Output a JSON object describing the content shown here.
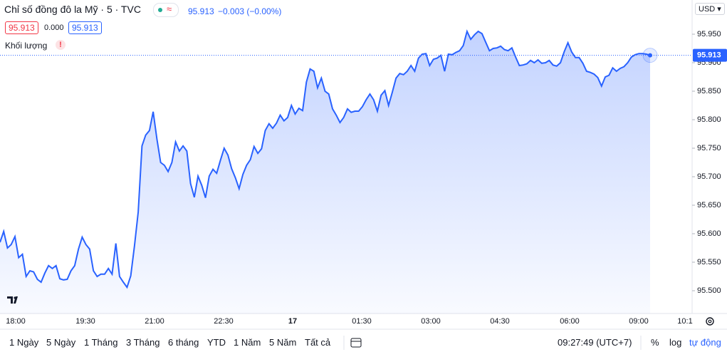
{
  "header": {
    "title": "Chỉ số đồng đô la Mỹ · 5 · TVC",
    "last": "95.913",
    "change": "−0.003 (−0.00%)",
    "bid": "95.913",
    "spread": "0.000",
    "ask": "95.913",
    "volume": "Khối lượng",
    "currency": "USD"
  },
  "chart_data": {
    "type": "area",
    "color": "#2962ff",
    "values": [
      95.585,
      95.604,
      95.575,
      95.581,
      95.595,
      95.558,
      95.564,
      95.525,
      95.535,
      95.533,
      95.52,
      95.515,
      95.531,
      95.544,
      95.539,
      95.544,
      95.521,
      95.519,
      95.52,
      95.535,
      95.544,
      95.573,
      95.594,
      95.581,
      95.573,
      95.535,
      95.525,
      95.529,
      95.529,
      95.539,
      95.529,
      95.583,
      95.525,
      95.515,
      95.506,
      95.526,
      95.579,
      95.638,
      95.754,
      95.773,
      95.781,
      95.814,
      95.766,
      95.725,
      95.72,
      95.709,
      95.725,
      95.761,
      95.745,
      95.754,
      95.745,
      95.688,
      95.664,
      95.701,
      95.685,
      95.663,
      95.701,
      95.713,
      95.706,
      95.729,
      95.75,
      95.738,
      95.714,
      95.698,
      95.679,
      95.704,
      95.72,
      95.73,
      95.753,
      95.741,
      95.749,
      95.781,
      95.793,
      95.785,
      95.794,
      95.808,
      95.798,
      95.804,
      95.825,
      95.81,
      95.82,
      95.816,
      95.866,
      95.889,
      95.885,
      95.856,
      95.873,
      95.85,
      95.845,
      95.819,
      95.808,
      95.795,
      95.804,
      95.819,
      95.813,
      95.815,
      95.815,
      95.823,
      95.835,
      95.845,
      95.835,
      95.815,
      95.843,
      95.851,
      95.825,
      95.848,
      95.873,
      95.881,
      95.879,
      95.885,
      95.895,
      95.885,
      95.908,
      95.915,
      95.916,
      95.895,
      95.906,
      95.908,
      95.913,
      95.885,
      95.915,
      95.914,
      95.918,
      95.921,
      95.93,
      95.955,
      95.941,
      95.949,
      95.955,
      95.951,
      95.936,
      95.921,
      95.925,
      95.926,
      95.929,
      95.923,
      95.921,
      95.926,
      95.91,
      95.895,
      95.896,
      95.898,
      95.904,
      95.9,
      95.905,
      95.899,
      95.9,
      95.904,
      95.896,
      95.894,
      95.9,
      95.919,
      95.935,
      95.919,
      95.909,
      95.909,
      95.899,
      95.885,
      95.883,
      95.88,
      95.874,
      95.859,
      95.875,
      95.878,
      95.891,
      95.885,
      95.89,
      95.893,
      95.9,
      95.91,
      95.914,
      95.916,
      95.916,
      95.915,
      95.913
    ],
    "ylim": [
      95.46,
      96.01
    ],
    "yticks": [
      {
        "value": 95.5,
        "label": "95.500"
      },
      {
        "value": 95.55,
        "label": "95.550"
      },
      {
        "value": 95.6,
        "label": "95.600"
      },
      {
        "value": 95.65,
        "label": "95.650"
      },
      {
        "value": 95.7,
        "label": "95.700"
      },
      {
        "value": 95.75,
        "label": "95.750"
      },
      {
        "value": 95.8,
        "label": "95.800"
      },
      {
        "value": 95.85,
        "label": "95.850"
      },
      {
        "value": 95.9,
        "label": "95.900"
      },
      {
        "value": 95.95,
        "label": "95.950"
      }
    ],
    "price_label": {
      "value": 95.913,
      "label": "95.913"
    },
    "x_labels": [
      "18:00",
      "19:30",
      "21:00",
      "22:30",
      "17",
      "01:30",
      "03:00",
      "04:30",
      "06:00",
      "09:00",
      "10:1"
    ],
    "grid": false
  },
  "toolbar": {
    "ranges": [
      "1 Ngày",
      "5 Ngày",
      "1 Tháng",
      "3 Tháng",
      "6 tháng",
      "YTD",
      "1 Năm",
      "5 Năm",
      "Tất cả"
    ],
    "clock": "09:27:49 (UTC+7)",
    "options": [
      "%",
      "log",
      "tự động"
    ]
  }
}
